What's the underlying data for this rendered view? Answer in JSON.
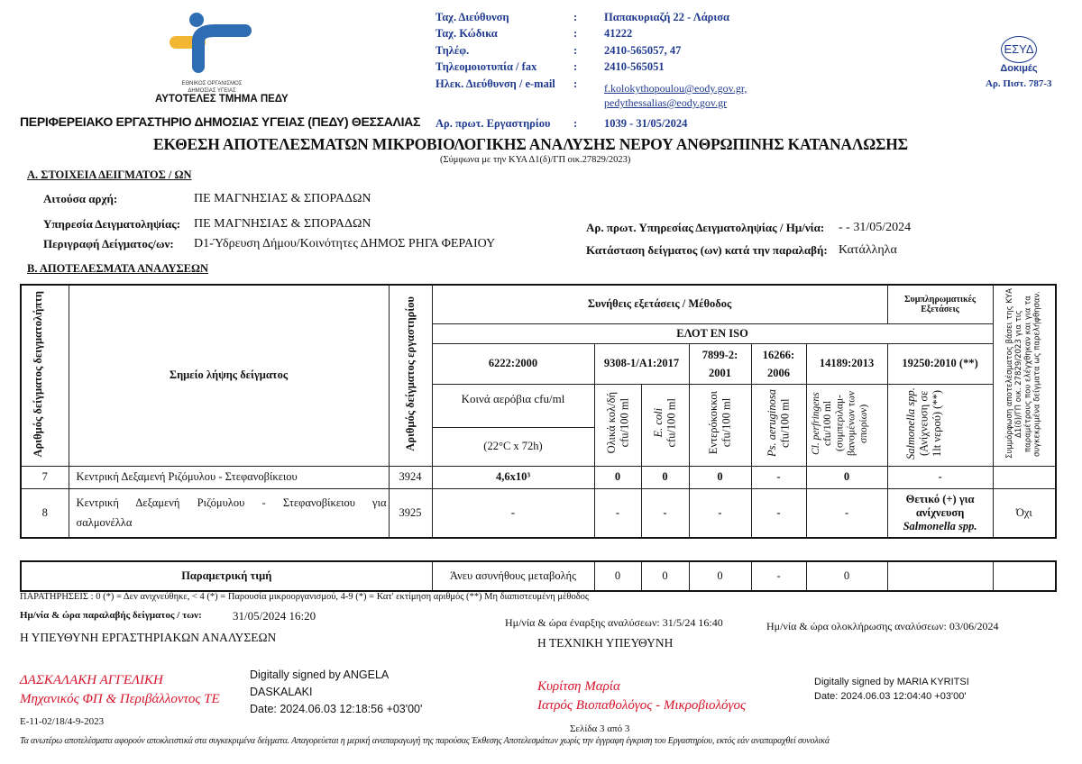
{
  "header": {
    "org_logo_text": [
      "ΕΘΝΙΚΟΣ ΟΡΓΑΝΙΣΜΟΣ",
      "ΔΗΜΟΣΙΑΣ ΥΓΕΙΑΣ"
    ],
    "unit": "ΑΥΤΟΤΕΛΕΣ ΤΜΗΜΑ ΠΕΔΥ",
    "lab_name": "ΠΕΡΙΦΕΡΕΙΑΚΟ ΕΡΓΑΣΤΗΡΙΟ ΔΗΜΟΣΙΑΣ ΥΓΕΙΑΣ (ΠΕΔΥ) ΘΕΣΣΑΛΙΑΣ",
    "contact": [
      {
        "label": "Ταχ. Διεύθυνση",
        "value": "Παπακυριαζή 22 - Λάρισα"
      },
      {
        "label": "Ταχ. Κώδικα",
        "value": "41222"
      },
      {
        "label": "Τηλέφ.",
        "value": "2410-565057, 47"
      },
      {
        "label": "Τηλεομοιοτυπία / fax",
        "value": "2410-565051"
      },
      {
        "label": "Ηλεκ. Διεύθυνση / e-mail",
        "value": "f.kolokythopoulou@eody.gov.gr,",
        "value2": "pedythessalias@eody.gov.gr"
      },
      {
        "label": "Αρ. πρωτ. Εργαστηρίου",
        "value": "1039 - 31/05/2024"
      }
    ],
    "colon": ":",
    "accreditation": {
      "logo_text": "ΕΣΥΔ",
      "label": "Δοκιμές",
      "number": "Αρ. Πιστ. 787-3"
    }
  },
  "title": "ΕΚΘΕΣΗ ΑΠΟΤΕΛΕΣΜΑΤΩΝ ΜΙΚΡΟΒΙΟΛΟΓΙΚΗΣ ΑΝΑΛΥΣΗΣ ΝΕΡΟΥ ΑΝΘΡΩΠΙΝΗΣ ΚΑΤΑΝΑΛΩΣΗΣ",
  "subtitle": "(Σύμφωνα με την ΚΥΑ Δ1(δ)/ΓΠ οικ.27829/2023)",
  "section_a": {
    "heading": "Α. ΣΤΟΙΧΕΙΑ ΔΕΙΓΜΑΤΟΣ / ΩΝ",
    "requesting_authority_label": "Αιτούσα αρχή:",
    "requesting_authority": "ΠΕ ΜΑΓΝΗΣΙΑΣ & ΣΠΟΡΑΔΩΝ",
    "sampling_service_label": "Υπηρεσία Δειγματοληψίας:",
    "sampling_service": "ΠΕ ΜΑΓΝΗΣΙΑΣ & ΣΠΟΡΑΔΩΝ",
    "description_label": "Περιγραφή Δείγματος/ων:",
    "description": "D1-Ύδρευση Δήμου/Κοινότητες ΔΗΜΟΣ ΡΗΓΑ ΦΕΡΑΙΟΥ",
    "protocol_label": "Αρ. πρωτ. Υπηρεσίας Δειγματοληψίας / Ημ/νία:",
    "protocol": "- - 31/05/2024",
    "condition_label": "Κατάσταση δείγματος (ων) κατά την παραλαβή:",
    "condition": "Κατάλληλα"
  },
  "section_b": {
    "heading": "Β. ΑΠΟΤΕΛΕΣΜΑΤΑ ΑΝΑΛΥΣΕΩΝ",
    "headers": {
      "sample_no": "Αριθμός δείγματος δειγματολήπτη",
      "sampling_point": "Σημείο λήψης δείγματος",
      "lab_no": "Αριθμός δείγματος εργαστηρίου",
      "usual_tests": "Συνήθεις εξετάσεις / Μέθοδος",
      "supplementary": "Συμπληρωματικές Εξετάσεις",
      "compliance": "Συμμόρφωση αποτελέσματος βάσει της ΚΥΑ Δ1(δ)/ΓΠ οικ. 27829/2023 για τις παραμέτρους που ελέγχθηκαν και για τα συγκεκριμένα δείγματα ως παρελήφθησαν.",
      "standard_family": "ΕΛΟΤ ΕΝ ISO",
      "standards": [
        "6222:2000",
        "9308-1/A1:2017",
        "7899-2: 2001",
        "16266: 2006",
        "14189:2013",
        "19250:2010 (**)"
      ],
      "aerobic": "Κοινά αερόβια cfu/ml",
      "aerobic_cond": "(22°C x 72h)",
      "params": [
        {
          "name": "Ολικά κολ/δή",
          "unit": "cfu/100 ml"
        },
        {
          "name": "E. coli",
          "unit": "cfu/100 ml",
          "italic": true
        },
        {
          "name": "Εντερόκοκκοι",
          "unit": "cfu/100 ml"
        },
        {
          "name": "Ps. aeruginosa",
          "unit": "cfu/100 ml",
          "italic": true
        },
        {
          "name": "Cl. perfringens",
          "unit": "cfu/100 ml (συμπεριλαμ-βανομένων των σπορίων)",
          "italic": true
        },
        {
          "name": "Salmonella spp.",
          "unit": "(Ανίχνευση σε 1lt νερού) (**)",
          "italic": true
        }
      ]
    },
    "rows": [
      {
        "sample_no": "7",
        "point": "Κεντρική Δεξαμενή Ριζόμυλου - Στεφανοβίκειου",
        "lab_no": "3924",
        "aerobic": "4,6x10³",
        "coliforms": "0",
        "ecoli": "0",
        "entero": "0",
        "ps": "-",
        "cl": "0",
        "salmonella": "-",
        "compliance": ""
      },
      {
        "sample_no": "8",
        "point": "Κεντρική Δεξαμενή Ριζόμυλου - Στεφανοβίκειου για σαλμονέλλα",
        "lab_no": "3925",
        "aerobic": "-",
        "coliforms": "-",
        "ecoli": "-",
        "entero": "-",
        "ps": "-",
        "cl": "-",
        "salmonella": "Θετικό (+) για ανίχνευση",
        "salmonella_2": "Salmonella spp.",
        "compliance": "Όχι"
      }
    ],
    "parametric": {
      "label": "Παραμετρική τιμή",
      "aerobic": "Άνευ ασυνήθους μεταβολής",
      "values": [
        "0",
        "0",
        "0",
        "-",
        "0",
        "",
        ""
      ]
    },
    "remarks": "ΠΑΡΑΤΗΡΗΣΕΙΣ : 0 (*) = Δεν ανιχνεύθηκε,  < 4 (*) =  Παρουσία μικροοργανισμού,  4-9 (*) =  Κατ' εκτίμηση αριθμός  (**) Μη διαπιστευμένη μέθοδος"
  },
  "dates": {
    "receipt_label": "Ημ/νία & ώρα παραλαβής δείγματος / των:",
    "receipt": "31/05/2024 16:20",
    "start": "Ημ/νία & ώρα έναρξης αναλύσεων: 31/5/24 16:40",
    "end": "Ημ/νία & ώρα ολοκλήρωσης αναλύσεων: 03/06/2024"
  },
  "signatures": {
    "left_role": "Η ΥΠΕΥΘΥΝΗ ΕΡΓΑΣΤΗΡΙΑΚΩΝ ΑΝΑΛΥΣΕΩΝ",
    "left_name": "ΔΑΣΚΑΛΑΚΗ ΑΓΓΕΛΙΚΗ",
    "left_title": "Μηχανικός ΦΠ & Περιβάλλοντος ΤΕ",
    "left_digital": [
      "Digitally signed by ANGELA",
      "DASKALAKI",
      "Date: 2024.06.03 12:18:56 +03'00'"
    ],
    "right_role": "Η ΤΕΧΝΙΚΗ ΥΠΕΥΘΥΝΗ",
    "right_name": "Κυρίτση Μαρία",
    "right_title": "Ιατρός Βιοπαθολόγος - Μικροβιολόγος",
    "right_digital": [
      "Digitally signed by MARIA KYRITSI",
      "Date: 2024.06.03 12:04:40 +03'00'"
    ]
  },
  "footer": {
    "form_code": "E-11-02/18/4-9-2023",
    "page": "Σελίδα  3 από 3",
    "disclaimer": "Τα ανωτέρω αποτελέσματα αφορούν αποκλειστικά στα συγκεκριμένα δείγματα. Απαγορεύεται η μερική αναπαραγωγή της παρούσας Έκθεσης Αποτελεσμάτων χωρίς την έγγραφη έγκριση του Εργαστηρίου, εκτός εάν αναπαραχθεί συνολικά"
  },
  "colors": {
    "header_blue": "#1f3a8f",
    "signature_red": "#d6142a",
    "logo_blue": "#2f6db3",
    "logo_yellow": "#f2b632"
  }
}
